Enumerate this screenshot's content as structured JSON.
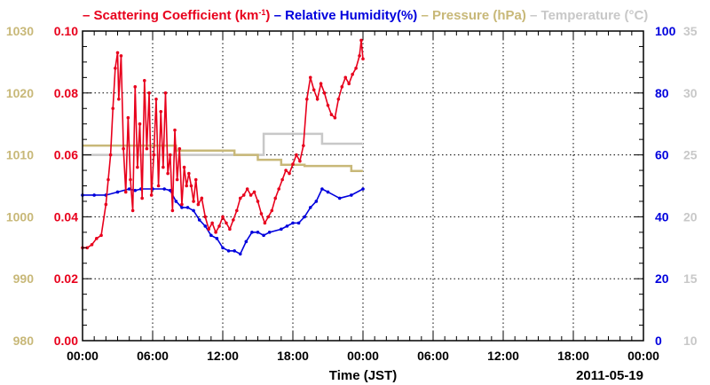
{
  "chart_data": {
    "type": "line",
    "title_parts": [
      {
        "text": "– Scattering Coefficient (km",
        "color": "#e8001c"
      },
      {
        "text": "-1",
        "color": "#e8001c",
        "sup": true
      },
      {
        "text": ") ",
        "color": "#e8001c"
      },
      {
        "text": "– Relative Humidity(%) ",
        "color": "#0000dd"
      },
      {
        "text": "– Pressure (hPa) ",
        "color": "#c8b878"
      },
      {
        "text": "– Temperature (°C)",
        "color": "#c8c8c8"
      }
    ],
    "xlabel": "Time (JST)",
    "date_label": "2011-05-19",
    "x_ticks": [
      "00:00",
      "06:00",
      "12:00",
      "18:00",
      "00:00",
      "06:00",
      "12:00",
      "18:00",
      "00:00"
    ],
    "x_range_hours": [
      0,
      48
    ],
    "grid": true,
    "axes": {
      "scattering": {
        "ticks": [
          "0.00",
          "0.02",
          "0.04",
          "0.06",
          "0.08",
          "0.10"
        ],
        "range": [
          0,
          0.1
        ],
        "color": "#e8001c"
      },
      "pressure": {
        "ticks": [
          "980",
          "990",
          "1000",
          "1010",
          "1020",
          "1030"
        ],
        "range": [
          980,
          1030
        ],
        "color": "#c8b878"
      },
      "humidity": {
        "ticks": [
          "0",
          "20",
          "40",
          "60",
          "80",
          "100"
        ],
        "range": [
          0,
          100
        ],
        "color": "#0000dd"
      },
      "temperature": {
        "ticks": [
          "10",
          "15",
          "20",
          "25",
          "30",
          "35"
        ],
        "range": [
          10,
          35
        ],
        "color": "#c8c8c8"
      }
    },
    "series": [
      {
        "name": "Temperature (°C)",
        "axis": "temperature",
        "color": "#c8c8c8",
        "step": true,
        "x": [
          0,
          15.5,
          20.5,
          24
        ],
        "y": [
          25,
          26.7,
          25.9,
          25.9
        ]
      },
      {
        "name": "Pressure (hPa)",
        "axis": "pressure",
        "color": "#c8b878",
        "step": true,
        "x": [
          0,
          6,
          8,
          10,
          13,
          15,
          17,
          18,
          19,
          21,
          23,
          24
        ],
        "y": [
          1011.5,
          1011.5,
          1010.7,
          1010.7,
          1010,
          1009.2,
          1008.4,
          1008.4,
          1008.2,
          1008.2,
          1007.4,
          1007.4
        ],
        "end_y": 1007.4
      },
      {
        "name": "Relative Humidity(%)",
        "axis": "humidity",
        "color": "#0000dd",
        "x": [
          0,
          1,
          2,
          3,
          4,
          4.5,
          5,
          6,
          7,
          7.5,
          8,
          8.5,
          9,
          9.5,
          10,
          10.5,
          11,
          11.5,
          12,
          12.5,
          13,
          13.5,
          14,
          14.5,
          15,
          15.5,
          16,
          17,
          17.5,
          18,
          18.5,
          19,
          19.5,
          20,
          20.5,
          21,
          22,
          23,
          24
        ],
        "y": [
          47,
          47,
          47,
          48,
          49,
          48.5,
          49,
          49,
          49,
          48.5,
          45,
          43,
          43,
          42,
          39,
          37,
          34,
          33,
          30,
          29,
          29,
          28,
          32,
          35,
          35,
          34,
          35,
          36,
          37,
          38,
          38,
          40,
          43,
          45,
          49,
          48,
          46,
          47,
          49
        ]
      },
      {
        "name": "Scattering Coefficient (km-1)",
        "axis": "scattering",
        "color": "#e8001c",
        "x": [
          0,
          0.4,
          0.8,
          1.2,
          1.6,
          2.0,
          2.2,
          2.4,
          2.6,
          2.8,
          3.0,
          3.1,
          3.3,
          3.5,
          3.7,
          3.9,
          4.1,
          4.3,
          4.5,
          4.7,
          4.9,
          5.1,
          5.3,
          5.5,
          5.7,
          5.9,
          6.1,
          6.3,
          6.5,
          6.7,
          6.9,
          7.1,
          7.3,
          7.5,
          7.7,
          7.9,
          8.1,
          8.3,
          8.5,
          8.7,
          8.9,
          9.1,
          9.3,
          9.5,
          9.7,
          9.9,
          10.2,
          10.5,
          10.8,
          11.1,
          11.4,
          11.7,
          12.0,
          12.3,
          12.6,
          12.9,
          13.2,
          13.5,
          13.8,
          14.1,
          14.4,
          14.7,
          15.0,
          15.3,
          15.6,
          15.9,
          16.2,
          16.5,
          16.8,
          17.1,
          17.4,
          17.7,
          18.0,
          18.3,
          18.6,
          18.9,
          19.2,
          19.5,
          19.8,
          20.1,
          20.4,
          20.7,
          21.0,
          21.3,
          21.6,
          21.9,
          22.2,
          22.5,
          22.8,
          23.1,
          23.4,
          23.7,
          23.85,
          24.0
        ],
        "y": [
          0.03,
          0.03,
          0.031,
          0.033,
          0.034,
          0.044,
          0.052,
          0.06,
          0.075,
          0.088,
          0.093,
          0.078,
          0.092,
          0.062,
          0.048,
          0.072,
          0.052,
          0.042,
          0.082,
          0.056,
          0.07,
          0.046,
          0.084,
          0.062,
          0.08,
          0.047,
          0.06,
          0.078,
          0.05,
          0.074,
          0.056,
          0.08,
          0.054,
          0.06,
          0.042,
          0.068,
          0.052,
          0.062,
          0.044,
          0.056,
          0.05,
          0.054,
          0.05,
          0.045,
          0.052,
          0.044,
          0.046,
          0.04,
          0.036,
          0.038,
          0.035,
          0.037,
          0.04,
          0.038,
          0.036,
          0.039,
          0.042,
          0.046,
          0.047,
          0.049,
          0.047,
          0.048,
          0.045,
          0.041,
          0.038,
          0.04,
          0.042,
          0.046,
          0.049,
          0.052,
          0.055,
          0.054,
          0.057,
          0.06,
          0.058,
          0.063,
          0.078,
          0.085,
          0.081,
          0.078,
          0.083,
          0.08,
          0.076,
          0.073,
          0.072,
          0.078,
          0.082,
          0.085,
          0.083,
          0.086,
          0.088,
          0.092,
          0.097,
          0.091
        ]
      }
    ]
  }
}
